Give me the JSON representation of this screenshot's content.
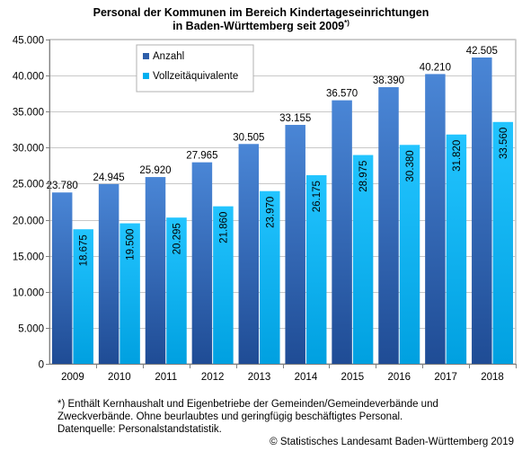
{
  "title": {
    "line1": "Personal der Kommunen im Bereich Kindertageseinrichtungen",
    "line2": "in Baden-Württemberg seit 2009",
    "marker": "*)"
  },
  "footnote": {
    "line1": "*) Enthält Kernhaushalt und Eigenbetriebe der Gemeinden/Gemeindeverbände und",
    "line2": "Zweckverbände. Ohne beurlaubtes  und geringfügig beschäftigtes Personal.",
    "line3": "Datenquelle: Personalstandstatistik."
  },
  "credit": "© Statistisches Landesamt Baden-Württemberg 2019",
  "chart_data": {
    "type": "bar",
    "categories": [
      "2009",
      "2010",
      "2011",
      "2012",
      "2013",
      "2014",
      "2015",
      "2016",
      "2017",
      "2018"
    ],
    "series": [
      {
        "name": "Anzahl",
        "color": "#2e5faa",
        "values": [
          23780,
          24945,
          25920,
          27965,
          30505,
          33155,
          36570,
          38390,
          40210,
          42505
        ],
        "labels": [
          "23.780",
          "24.945",
          "25.920",
          "27.965",
          "30.505",
          "33.155",
          "36.570",
          "38.390",
          "40.210",
          "42.505"
        ]
      },
      {
        "name": "Vollzeitäquivalente",
        "color": "#00b0f0",
        "values": [
          18675,
          19500,
          20295,
          21860,
          23970,
          26175,
          28975,
          30380,
          31820,
          33560
        ],
        "labels": [
          "18.675",
          "19.500",
          "20.295",
          "21.860",
          "23.970",
          "26.175",
          "28.975",
          "30.380",
          "31.820",
          "33.560"
        ]
      }
    ],
    "yticks": [
      0,
      5000,
      10000,
      15000,
      20000,
      25000,
      30000,
      35000,
      40000,
      45000
    ],
    "ytick_labels": [
      "0",
      "5.000",
      "10.000",
      "15.000",
      "20.000",
      "25.000",
      "30.000",
      "35.000",
      "40.000",
      "45.000"
    ],
    "ylim": [
      0,
      45000
    ],
    "grid": true,
    "legend": "top-left"
  }
}
